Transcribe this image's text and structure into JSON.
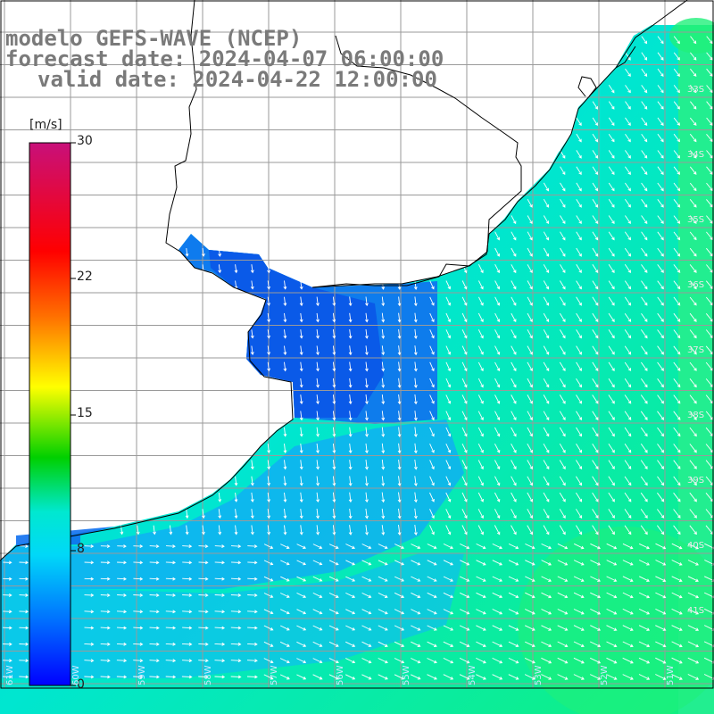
{
  "title": {
    "line1": "modelo GEFS-WAVE (NCEP)",
    "line2": "forecast date: 2024-04-07 06:00:00",
    "line3": "valid date: 2024-04-22 12:00:00"
  },
  "colorbar": {
    "unit": "[m/s]",
    "ticks": [
      "30",
      "22",
      "15",
      "8",
      "0"
    ],
    "stops": [
      "#c8107a",
      "#ff0000",
      "#ff8000",
      "#ffff00",
      "#00d000",
      "#00e0e0",
      "#0080ff",
      "#0000ff"
    ]
  },
  "lat_labels": [
    "33S",
    "34S",
    "35S",
    "36S",
    "37S",
    "38S",
    "39S",
    "40S",
    "41S"
  ],
  "lon_labels": [
    "61W",
    "60W",
    "59W",
    "58W",
    "57W",
    "56W",
    "55W",
    "54W",
    "53W",
    "52W",
    "51W"
  ],
  "legend_icons": [
    "arrow-icon"
  ]
}
